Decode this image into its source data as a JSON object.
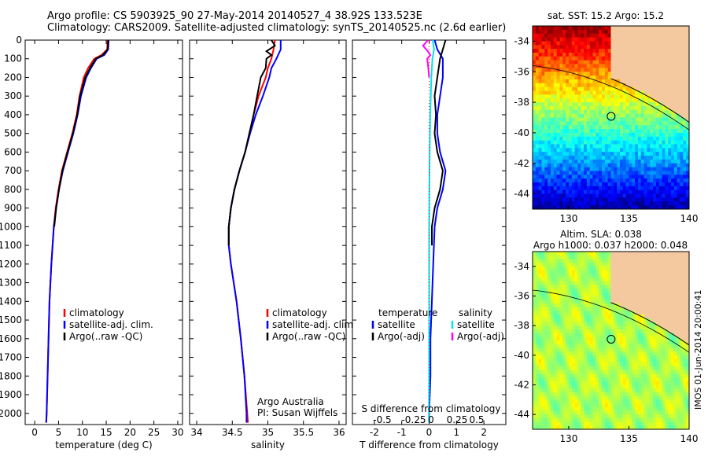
{
  "header": {
    "line1": "Argo profile: CS 5903925_90 27-May-2014 20140527_4 38.92S 133.523E",
    "line2": "Climatology: CARS2009. Satellite-adjusted climatology: synTS_20140525.nc (2.6d earlier)"
  },
  "side_label": "IMOS 01-Jun-2014 20:00:41",
  "colors": {
    "climatology": "#ff0000",
    "satellite": "#0000ff",
    "argo": "#000000",
    "salinity_satellite": "#00e5ee",
    "salinity_argo": "#ff00ff",
    "land": "#f5c9a0"
  },
  "chart_data": [
    {
      "id": "temperature",
      "type": "line",
      "xlabel": "temperature (deg C)",
      "xticks": [
        0,
        5,
        10,
        15,
        20,
        25,
        30
      ],
      "xlim": [
        -2,
        31
      ],
      "yticks": [
        0,
        100,
        200,
        300,
        400,
        500,
        600,
        700,
        800,
        900,
        1000,
        1100,
        1200,
        1300,
        1400,
        1500,
        1600,
        1700,
        1800,
        1900,
        2000
      ],
      "ylim": [
        0,
        2060
      ],
      "legend": [
        "climatology",
        "satellite-adj. clim.",
        "Argo(..raw -QC)"
      ],
      "series": [
        {
          "name": "climatology",
          "color": "climatology",
          "depth": [
            0,
            50,
            80,
            100,
            150,
            200,
            300,
            400,
            500,
            600,
            700,
            800,
            900,
            1000,
            1200,
            1400,
            1600,
            1800,
            2000,
            2050
          ],
          "values": [
            15.3,
            15.2,
            14.0,
            12.5,
            11.2,
            10.3,
            9.4,
            8.8,
            7.9,
            6.8,
            5.7,
            5.0,
            4.4,
            4.0,
            3.5,
            3.1,
            2.9,
            2.7,
            2.5,
            2.4
          ]
        },
        {
          "name": "satellite-adj. clim.",
          "color": "satellite",
          "depth": [
            0,
            50,
            80,
            100,
            150,
            200,
            300,
            400,
            500,
            600,
            700,
            800,
            900,
            1000,
            1200,
            1400,
            1600,
            1800,
            2000,
            2050
          ],
          "values": [
            15.5,
            15.4,
            14.6,
            13.0,
            11.8,
            10.8,
            9.7,
            9.0,
            8.1,
            7.0,
            5.9,
            5.1,
            4.5,
            4.0,
            3.5,
            3.1,
            2.9,
            2.7,
            2.5,
            2.4
          ]
        },
        {
          "name": "Argo(..raw -QC)",
          "color": "argo",
          "depth": [
            0,
            50,
            80,
            100,
            150,
            200,
            300,
            400,
            500,
            600,
            700,
            800,
            900,
            1000
          ],
          "values": [
            15.4,
            15.3,
            14.3,
            12.8,
            11.6,
            10.6,
            9.5,
            8.9,
            8.0,
            6.9,
            5.8,
            5.1,
            4.5,
            4.1
          ]
        }
      ]
    },
    {
      "id": "salinity",
      "type": "line",
      "xlabel": "salinity",
      "xticks": [
        34,
        34.5,
        35,
        35.5,
        36
      ],
      "xlim": [
        33.9,
        36.1
      ],
      "ylim": [
        0,
        2060
      ],
      "legend": [
        "climatology",
        "satellite-adj. clim.",
        "Argo(..raw -QC)"
      ],
      "annotation": [
        "Argo Australia",
        "PI: Susan Wijffels"
      ],
      "series": [
        {
          "name": "climatology",
          "color": "climatology",
          "depth": [
            0,
            50,
            100,
            150,
            200,
            300,
            400,
            500,
            600,
            700,
            800,
            900,
            1000,
            1100,
            1200,
            1300,
            1400,
            1600,
            1800,
            2000,
            2050
          ],
          "values": [
            35.1,
            35.08,
            35.05,
            35.0,
            34.97,
            34.87,
            34.8,
            34.74,
            34.68,
            34.6,
            34.53,
            34.48,
            34.45,
            34.45,
            34.48,
            34.52,
            34.56,
            34.62,
            34.67,
            34.71,
            34.72
          ]
        },
        {
          "name": "satellite-adj. clim.",
          "color": "satellite",
          "depth": [
            0,
            50,
            100,
            150,
            200,
            300,
            400,
            500,
            600,
            700,
            800,
            900,
            1000,
            1100,
            1200,
            1300,
            1400,
            1600,
            1800,
            2000,
            2050
          ],
          "values": [
            35.18,
            35.18,
            35.12,
            35.05,
            35.02,
            34.93,
            34.83,
            34.75,
            34.68,
            34.6,
            34.53,
            34.48,
            34.45,
            34.45,
            34.48,
            34.52,
            34.56,
            34.62,
            34.67,
            34.7,
            34.7
          ]
        },
        {
          "name": "Argo(..raw -QC)",
          "color": "argo",
          "depth": [
            0,
            30,
            60,
            80,
            100,
            150,
            200,
            300,
            400,
            500,
            600,
            700,
            800,
            900,
            1000,
            1100
          ],
          "values": [
            35.05,
            35.1,
            34.98,
            35.05,
            34.98,
            34.97,
            34.9,
            34.85,
            34.8,
            34.74,
            34.68,
            34.6,
            34.53,
            34.48,
            34.45,
            34.45
          ]
        }
      ]
    },
    {
      "id": "difference",
      "type": "line",
      "xlabel": "T difference from climatology",
      "x2label": "S difference from climatology",
      "xticks": [
        -2,
        -1,
        0,
        1,
        2
      ],
      "xlim": [
        -2.8,
        2.8
      ],
      "x2ticks": [
        "-0.5",
        "-0.25",
        "0",
        "0.25",
        "0.5"
      ],
      "ylim": [
        0,
        2060
      ],
      "legend_temperature_title": "temperature",
      "legend_temperature": [
        "satellite",
        "Argo(-adj)"
      ],
      "legend_salinity_title": "salinity",
      "legend_salinity": [
        "satellite",
        "Argo(-adj)"
      ],
      "series": [
        {
          "name": "T satellite",
          "color": "satellite",
          "depth": [
            0,
            50,
            100,
            200,
            300,
            400,
            500,
            600,
            700,
            800,
            900,
            1000,
            1200,
            1400,
            1600,
            1800,
            2000,
            2050
          ],
          "values": [
            0.2,
            0.3,
            0.5,
            0.5,
            0.4,
            0.3,
            0.3,
            0.4,
            0.6,
            0.5,
            0.3,
            0.2,
            0.15,
            0.1,
            0.05,
            0.05,
            0.0,
            0.0
          ]
        },
        {
          "name": "T Argo(-adj)",
          "color": "argo",
          "depth": [
            0,
            50,
            100,
            200,
            300,
            400,
            500,
            600,
            700,
            800,
            900,
            1000,
            1100
          ],
          "values": [
            0.6,
            0.5,
            0.4,
            0.3,
            0.2,
            0.25,
            0.2,
            0.3,
            0.5,
            0.4,
            0.2,
            0.1,
            0.1
          ]
        },
        {
          "name": "S satellite",
          "color": "salinity_satellite",
          "depth": [
            0,
            50,
            100,
            200,
            300,
            400,
            600,
            800,
            1000,
            1200,
            1400,
            1600,
            1800,
            2000,
            2050
          ],
          "values": [
            0.13,
            0.18,
            0.12,
            0.08,
            0.06,
            0.04,
            0.02,
            0.01,
            0.0,
            0.0,
            0.0,
            0.0,
            0.0,
            -0.01,
            -0.01
          ]
        },
        {
          "name": "S Argo(-adj)",
          "color": "salinity_argo",
          "depth": [
            0,
            30,
            60,
            80,
            100,
            150,
            200
          ],
          "values": [
            -0.04,
            -0.22,
            -0.05,
            0.05,
            -0.07,
            -0.03,
            0.0
          ]
        }
      ]
    },
    {
      "id": "sst-map",
      "type": "heatmap",
      "title": "sat. SST: 15.2  Argo: 15.2",
      "xticks": [
        130,
        135,
        140
      ],
      "yticks": [
        -34,
        -36,
        -38,
        -40,
        -42,
        -44
      ],
      "xlim": [
        127,
        140
      ],
      "ylim": [
        -45,
        -33
      ],
      "marker": {
        "lon": 133.523,
        "lat": -38.92
      }
    },
    {
      "id": "sla-map",
      "type": "heatmap",
      "title": "Altim. SLA: 0.038",
      "subtitle": "Argo h1000: 0.037 h2000: 0.048",
      "xticks": [
        130,
        135,
        140
      ],
      "yticks": [
        -34,
        -36,
        -38,
        -40,
        -42,
        -44
      ],
      "xlim": [
        127,
        140
      ],
      "ylim": [
        -45,
        -33
      ],
      "marker": {
        "lon": 133.523,
        "lat": -38.92
      }
    }
  ]
}
